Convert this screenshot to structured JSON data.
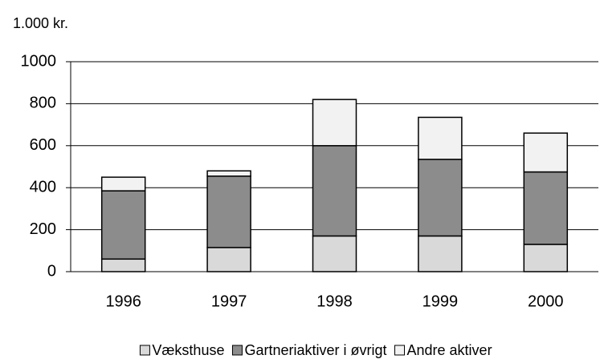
{
  "chart_data": {
    "type": "stacked_bar",
    "title": "1.000 kr.",
    "categories": [
      "1996",
      "1997",
      "1998",
      "1999",
      "2000"
    ],
    "series": [
      {
        "name": "Væksthuse",
        "color": "#d9d9d9",
        "values": [
          60,
          115,
          170,
          170,
          130
        ]
      },
      {
        "name": "Gartneriaktiver i øvrigt",
        "color": "#8c8c8c",
        "values": [
          325,
          340,
          430,
          365,
          345
        ]
      },
      {
        "name": "Andre aktiver",
        "color": "#f2f2f2",
        "values": [
          65,
          25,
          220,
          200,
          185
        ]
      }
    ],
    "ylim": [
      0,
      1000
    ],
    "yticks": [
      0,
      200,
      400,
      600,
      800,
      1000
    ],
    "grid": true,
    "legend": "bottom"
  }
}
